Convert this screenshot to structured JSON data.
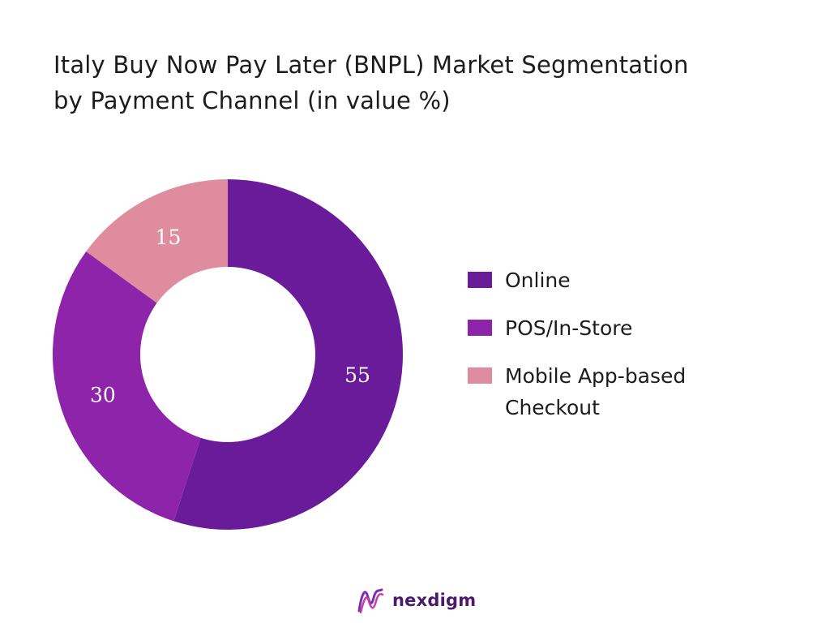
{
  "chart_data": {
    "type": "pie",
    "title_lines": [
      "Italy Buy Now Pay Later (BNPL) Market Segmentation",
      "by Payment Channel (in value %)"
    ],
    "categories": [
      "Online",
      "POS/In-Store",
      "Mobile App-based Checkout"
    ],
    "legend_lines": [
      [
        "Online"
      ],
      [
        "POS/In-Store"
      ],
      [
        "Mobile App-based",
        "Checkout"
      ]
    ],
    "values": [
      55,
      30,
      15
    ],
    "colors": [
      "#6a1b9a",
      "#8e24aa",
      "#de8c9e"
    ],
    "donut": true,
    "legend_position": "right"
  },
  "brand": {
    "name": "nexdigm",
    "icon": "wave-logo-icon"
  }
}
